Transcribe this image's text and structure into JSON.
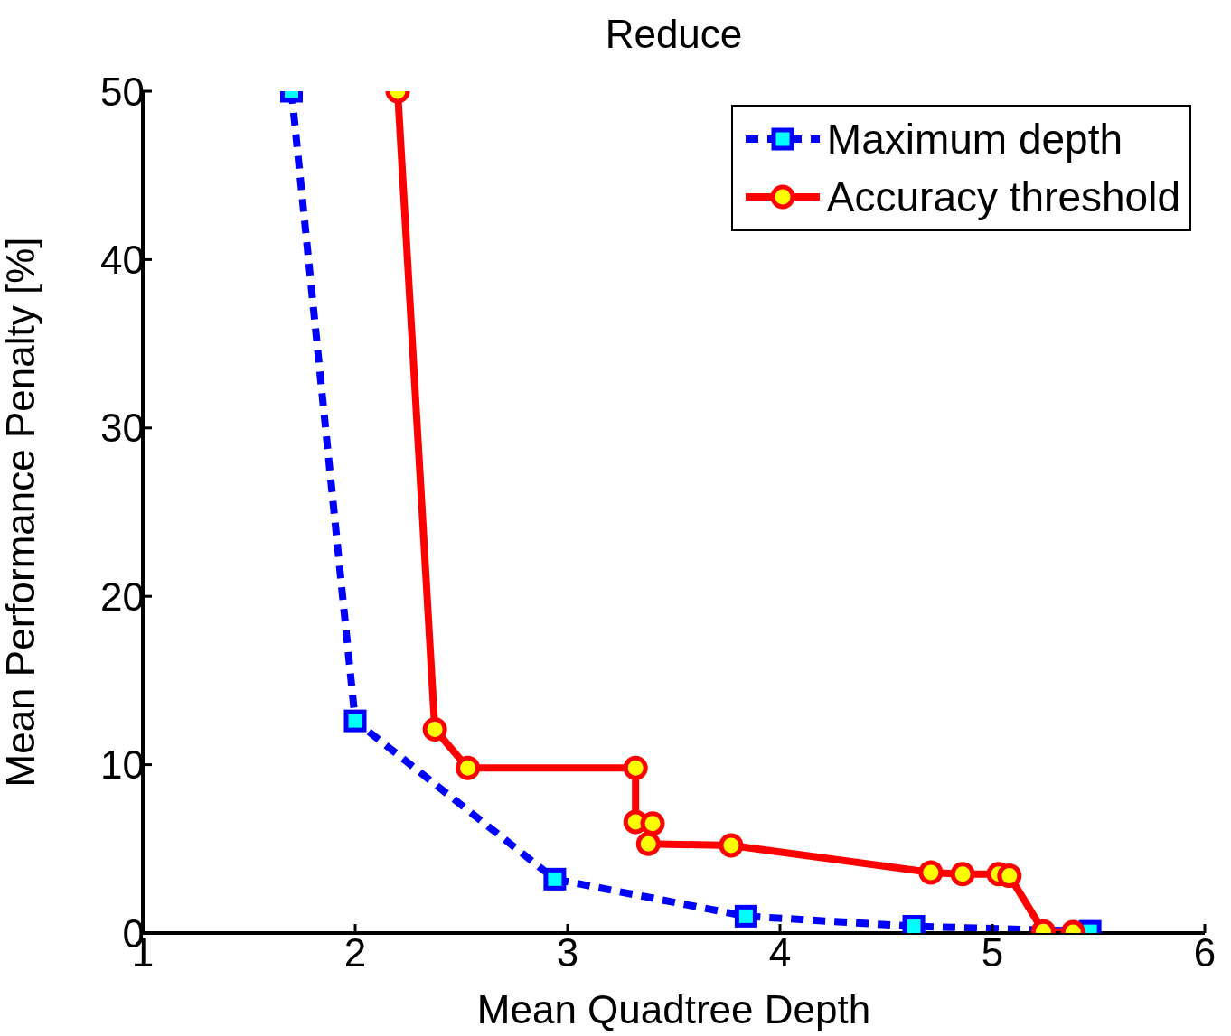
{
  "chart_data": {
    "type": "line",
    "title": "Reduce",
    "xlabel": "Mean Quadtree Depth",
    "ylabel": "Mean Performance Penalty [%]",
    "xlim": [
      1,
      6
    ],
    "xticks": [
      1,
      2,
      3,
      4,
      5,
      6
    ],
    "ylim": [
      0,
      50
    ],
    "yticks": [
      0,
      10,
      20,
      30,
      40,
      50
    ],
    "legend": "top right",
    "series": [
      {
        "name": "Maximum depth",
        "color": "#0000ff",
        "marker": "square",
        "line_style": "dashed",
        "x": [
          1.7,
          2.0,
          2.94,
          3.84,
          4.63,
          5.46
        ],
        "values": [
          50,
          12.6,
          3.2,
          1.0,
          0.4,
          0.1
        ]
      },
      {
        "name": "Accuracy threshold",
        "color": "#ff0000",
        "marker": "circle",
        "line_style": "solid",
        "x": [
          2.2,
          2.375,
          2.53,
          3.32,
          3.32,
          3.4,
          3.38,
          3.77,
          4.71,
          4.86,
          5.03,
          5.08,
          5.24,
          5.38
        ],
        "values": [
          50,
          12.1,
          9.8,
          9.8,
          6.6,
          6.5,
          5.3,
          5.2,
          3.6,
          3.5,
          3.5,
          3.4,
          0.1,
          0.05
        ]
      }
    ]
  }
}
